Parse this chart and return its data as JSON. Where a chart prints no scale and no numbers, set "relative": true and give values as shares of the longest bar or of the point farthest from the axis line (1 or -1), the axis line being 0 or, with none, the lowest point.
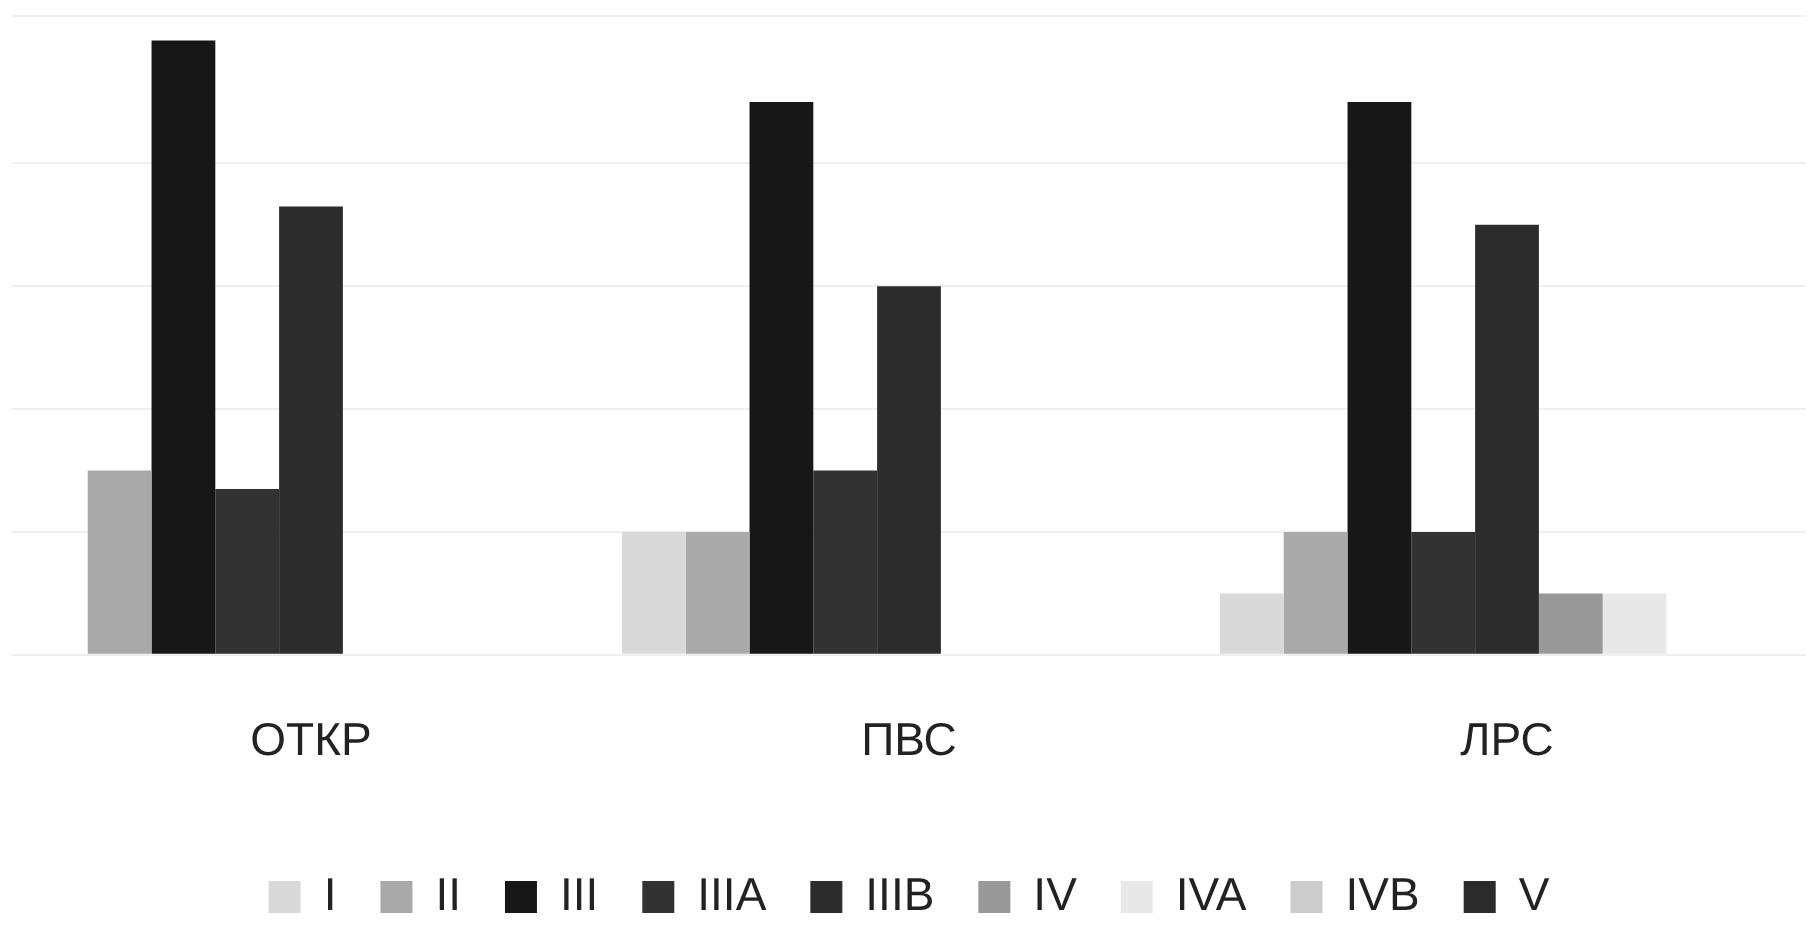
{
  "chart_data": {
    "type": "bar",
    "relative": true,
    "categories": [
      "ОТКР",
      "ПВС",
      "ЛРС"
    ],
    "grid": "y",
    "legend": "bottom",
    "series": [
      {
        "name": "I",
        "color": "#d9d9d9",
        "values": [
          null,
          0.2,
          0.1
        ]
      },
      {
        "name": "II",
        "color": "#a9a9a9",
        "values": [
          0.3,
          0.2,
          0.2
        ]
      },
      {
        "name": "III",
        "color": "#171717",
        "values": [
          1,
          0.9,
          0.9
        ]
      },
      {
        "name": "IIIA",
        "color": "#323232",
        "values": [
          0.27,
          0.3,
          0.2
        ]
      },
      {
        "name": "IIIB",
        "color": "#2c2c2c",
        "values": [
          0.73,
          0.6,
          0.7
        ]
      },
      {
        "name": "IV",
        "color": "#999999",
        "values": [
          null,
          null,
          0.1
        ]
      },
      {
        "name": "IVA",
        "color": "#e8e8e8",
        "values": [
          null,
          null,
          0.1
        ]
      },
      {
        "name": "IVB",
        "color": "#cccccc",
        "values": [
          null,
          null,
          null
        ]
      },
      {
        "name": "V",
        "color": "#2a2a2a",
        "values": [
          null,
          null,
          null
        ]
      }
    ]
  }
}
